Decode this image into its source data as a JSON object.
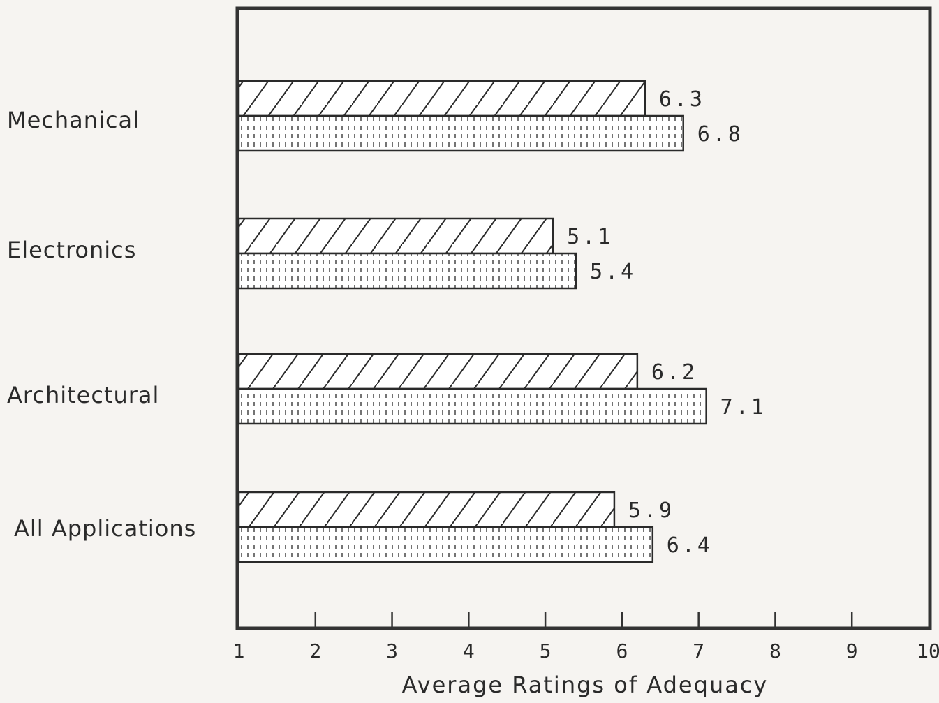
{
  "chart_data": {
    "type": "bar",
    "orientation": "horizontal",
    "categories": [
      "Mechanical",
      "Electronics",
      "Architectural",
      "All Applications"
    ],
    "series": [
      {
        "pattern": "diagonal-hatch",
        "values": [
          6.3,
          5.1,
          6.2,
          5.9
        ]
      },
      {
        "pattern": "dotted-vertical",
        "values": [
          6.8,
          5.4,
          7.1,
          6.4
        ]
      }
    ],
    "value_labels": [
      [
        "6.3",
        "5.1",
        "6.2",
        "5.9"
      ],
      [
        "6.8",
        "5.4",
        "7.1",
        "6.4"
      ]
    ],
    "xlabel": "Average Ratings of Adequacy",
    "xlim": [
      1,
      10
    ],
    "xticks": [
      "1",
      "2",
      "3",
      "4",
      "5",
      "6",
      "7",
      "8",
      "9",
      "10"
    ],
    "grid": false,
    "legend": "none",
    "colors": {
      "ink": "#2a2a2a",
      "background": "#f6f4f1",
      "bar_fill": "#ffffff"
    }
  }
}
